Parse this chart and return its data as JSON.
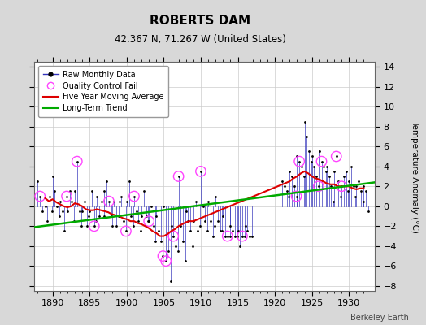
{
  "title": "ROBERTS DAM",
  "subtitle": "42.367 N, 71.267 W (United States)",
  "ylabel": "Temperature Anomaly (°C)",
  "credit": "Berkeley Earth",
  "xlim": [
    1887.5,
    1933.5
  ],
  "ylim": [
    -8.5,
    14.5
  ],
  "yticks": [
    -8,
    -6,
    -4,
    -2,
    0,
    2,
    4,
    6,
    8,
    10,
    12,
    14
  ],
  "xticks": [
    1890,
    1895,
    1900,
    1905,
    1910,
    1915,
    1920,
    1925,
    1930
  ],
  "outer_bg": "#d8d8d8",
  "plot_bg_color": "#ffffff",
  "raw_line_color": "#3333bb",
  "raw_dot_color": "#000000",
  "qc_fail_color": "#ff44ff",
  "moving_avg_color": "#dd0000",
  "trend_color": "#00aa00",
  "raw_data": [
    [
      1888.0,
      2.5
    ],
    [
      1888.3,
      1.0
    ],
    [
      1888.6,
      -0.5
    ],
    [
      1889.0,
      0.0
    ],
    [
      1889.3,
      -1.5
    ],
    [
      1889.6,
      1.0
    ],
    [
      1889.9,
      -0.5
    ],
    [
      1890.0,
      3.0
    ],
    [
      1890.3,
      1.5
    ],
    [
      1890.6,
      0.0
    ],
    [
      1890.9,
      -1.0
    ],
    [
      1891.0,
      0.5
    ],
    [
      1891.3,
      -0.5
    ],
    [
      1891.6,
      -2.5
    ],
    [
      1891.9,
      1.0
    ],
    [
      1892.0,
      -0.5
    ],
    [
      1892.3,
      1.5
    ],
    [
      1892.6,
      0.5
    ],
    [
      1892.9,
      -1.5
    ],
    [
      1893.0,
      1.5
    ],
    [
      1893.3,
      4.5
    ],
    [
      1893.6,
      -0.5
    ],
    [
      1893.9,
      -2.0
    ],
    [
      1894.0,
      -0.5
    ],
    [
      1894.3,
      0.5
    ],
    [
      1894.6,
      -2.0
    ],
    [
      1894.9,
      -1.0
    ],
    [
      1895.0,
      -0.5
    ],
    [
      1895.3,
      1.5
    ],
    [
      1895.6,
      -2.0
    ],
    [
      1895.9,
      -1.5
    ],
    [
      1896.0,
      1.0
    ],
    [
      1896.3,
      -1.0
    ],
    [
      1896.6,
      0.5
    ],
    [
      1896.9,
      1.5
    ],
    [
      1897.0,
      -1.0
    ],
    [
      1897.3,
      2.5
    ],
    [
      1897.6,
      0.5
    ],
    [
      1897.9,
      -1.0
    ],
    [
      1898.0,
      -2.0
    ],
    [
      1898.3,
      0.5
    ],
    [
      1898.6,
      -2.0
    ],
    [
      1898.9,
      -1.0
    ],
    [
      1899.0,
      0.5
    ],
    [
      1899.3,
      1.0
    ],
    [
      1899.6,
      -1.5
    ],
    [
      1899.9,
      -2.5
    ],
    [
      1900.0,
      0.5
    ],
    [
      1900.3,
      2.5
    ],
    [
      1900.6,
      -1.0
    ],
    [
      1900.9,
      -2.0
    ],
    [
      1901.0,
      1.0
    ],
    [
      1901.3,
      -0.5
    ],
    [
      1901.6,
      -1.5
    ],
    [
      1901.9,
      -2.5
    ],
    [
      1902.0,
      -1.0
    ],
    [
      1902.3,
      1.5
    ],
    [
      1902.6,
      -1.0
    ],
    [
      1902.9,
      -1.5
    ],
    [
      1903.0,
      -1.5
    ],
    [
      1903.3,
      0.0
    ],
    [
      1903.6,
      -2.0
    ],
    [
      1903.9,
      -3.5
    ],
    [
      1904.0,
      -1.0
    ],
    [
      1904.3,
      -2.5
    ],
    [
      1904.6,
      -3.5
    ],
    [
      1904.9,
      -5.0
    ],
    [
      1905.0,
      0.0
    ],
    [
      1905.3,
      -5.5
    ],
    [
      1905.6,
      -4.5
    ],
    [
      1905.9,
      -7.5
    ],
    [
      1906.0,
      -2.0
    ],
    [
      1906.3,
      -3.0
    ],
    [
      1906.6,
      -4.0
    ],
    [
      1906.9,
      -4.5
    ],
    [
      1907.0,
      3.0
    ],
    [
      1907.3,
      -2.0
    ],
    [
      1907.6,
      -3.5
    ],
    [
      1907.9,
      -5.5
    ],
    [
      1908.0,
      -0.5
    ],
    [
      1908.3,
      -1.5
    ],
    [
      1908.6,
      -2.5
    ],
    [
      1908.9,
      -4.0
    ],
    [
      1909.0,
      -1.5
    ],
    [
      1909.3,
      0.5
    ],
    [
      1909.6,
      -2.5
    ],
    [
      1909.9,
      -2.0
    ],
    [
      1910.0,
      3.5
    ],
    [
      1910.3,
      0.0
    ],
    [
      1910.6,
      -1.5
    ],
    [
      1910.9,
      -2.5
    ],
    [
      1911.0,
      0.5
    ],
    [
      1911.3,
      -1.5
    ],
    [
      1911.6,
      -3.0
    ],
    [
      1911.9,
      -2.0
    ],
    [
      1912.0,
      1.0
    ],
    [
      1912.3,
      -1.5
    ],
    [
      1912.6,
      -2.5
    ],
    [
      1912.9,
      -2.5
    ],
    [
      1913.0,
      -1.0
    ],
    [
      1913.3,
      -3.0
    ],
    [
      1913.6,
      -3.0
    ],
    [
      1913.9,
      -3.0
    ],
    [
      1914.0,
      -2.0
    ],
    [
      1914.3,
      -2.5
    ],
    [
      1914.6,
      -3.0
    ],
    [
      1914.9,
      -3.0
    ],
    [
      1915.0,
      -2.5
    ],
    [
      1915.3,
      -4.0
    ],
    [
      1915.6,
      -3.0
    ],
    [
      1915.9,
      -3.0
    ],
    [
      1916.0,
      -2.0
    ],
    [
      1916.3,
      -2.5
    ],
    [
      1916.6,
      -3.0
    ],
    [
      1916.9,
      -3.0
    ],
    [
      1921.0,
      2.5
    ],
    [
      1921.3,
      2.0
    ],
    [
      1921.6,
      1.5
    ],
    [
      1921.9,
      1.0
    ],
    [
      1922.0,
      3.5
    ],
    [
      1922.3,
      3.0
    ],
    [
      1922.6,
      2.0
    ],
    [
      1922.9,
      1.0
    ],
    [
      1923.0,
      5.0
    ],
    [
      1923.3,
      4.5
    ],
    [
      1923.6,
      4.0
    ],
    [
      1923.9,
      3.0
    ],
    [
      1924.0,
      8.5
    ],
    [
      1924.3,
      7.0
    ],
    [
      1924.6,
      5.5
    ],
    [
      1924.9,
      4.5
    ],
    [
      1925.0,
      5.0
    ],
    [
      1925.3,
      4.0
    ],
    [
      1925.6,
      3.0
    ],
    [
      1925.9,
      2.0
    ],
    [
      1926.0,
      5.5
    ],
    [
      1926.3,
      4.5
    ],
    [
      1926.6,
      4.0
    ],
    [
      1926.9,
      3.5
    ],
    [
      1927.0,
      4.0
    ],
    [
      1927.3,
      3.0
    ],
    [
      1927.6,
      2.0
    ],
    [
      1927.9,
      0.5
    ],
    [
      1928.0,
      3.5
    ],
    [
      1928.3,
      5.0
    ],
    [
      1928.6,
      2.5
    ],
    [
      1928.9,
      1.0
    ],
    [
      1929.0,
      2.0
    ],
    [
      1929.3,
      3.0
    ],
    [
      1929.6,
      3.5
    ],
    [
      1929.9,
      1.5
    ],
    [
      1930.0,
      2.5
    ],
    [
      1930.3,
      4.0
    ],
    [
      1930.6,
      2.0
    ],
    [
      1930.9,
      1.0
    ],
    [
      1931.0,
      2.0
    ],
    [
      1931.3,
      2.5
    ],
    [
      1931.6,
      1.5
    ],
    [
      1931.9,
      0.5
    ],
    [
      1932.0,
      2.0
    ],
    [
      1932.3,
      1.5
    ],
    [
      1932.6,
      -0.5
    ]
  ],
  "qc_fail_points": [
    [
      1888.3,
      1.0
    ],
    [
      1891.9,
      1.0
    ],
    [
      1893.3,
      4.5
    ],
    [
      1895.6,
      -2.0
    ],
    [
      1897.6,
      0.5
    ],
    [
      1899.9,
      -2.5
    ],
    [
      1901.0,
      1.0
    ],
    [
      1903.0,
      -1.5
    ],
    [
      1904.9,
      -5.0
    ],
    [
      1905.3,
      -5.5
    ],
    [
      1906.3,
      -3.0
    ],
    [
      1907.0,
      3.0
    ],
    [
      1910.0,
      3.5
    ],
    [
      1913.6,
      -3.0
    ],
    [
      1915.6,
      -3.0
    ],
    [
      1922.9,
      1.0
    ],
    [
      1923.3,
      4.5
    ],
    [
      1925.9,
      2.0
    ],
    [
      1926.3,
      4.5
    ],
    [
      1928.3,
      5.0
    ],
    [
      1929.0,
      2.0
    ]
  ],
  "moving_avg": [
    [
      1889.0,
      0.8
    ],
    [
      1889.5,
      0.5
    ],
    [
      1890.0,
      0.7
    ],
    [
      1890.5,
      0.4
    ],
    [
      1891.0,
      0.2
    ],
    [
      1891.5,
      0.0
    ],
    [
      1892.0,
      -0.1
    ],
    [
      1892.5,
      0.0
    ],
    [
      1893.0,
      0.3
    ],
    [
      1893.5,
      0.2
    ],
    [
      1894.0,
      0.0
    ],
    [
      1894.5,
      -0.3
    ],
    [
      1895.0,
      -0.4
    ],
    [
      1895.5,
      -0.4
    ],
    [
      1896.0,
      -0.3
    ],
    [
      1896.5,
      -0.4
    ],
    [
      1897.0,
      -0.5
    ],
    [
      1897.5,
      -0.6
    ],
    [
      1898.0,
      -0.8
    ],
    [
      1898.5,
      -0.9
    ],
    [
      1899.0,
      -1.0
    ],
    [
      1899.5,
      -1.2
    ],
    [
      1900.0,
      -1.3
    ],
    [
      1900.5,
      -1.5
    ],
    [
      1901.0,
      -1.5
    ],
    [
      1901.5,
      -1.7
    ],
    [
      1902.0,
      -1.8
    ],
    [
      1902.5,
      -2.0
    ],
    [
      1903.0,
      -2.2
    ],
    [
      1903.5,
      -2.5
    ],
    [
      1904.0,
      -2.7
    ],
    [
      1904.5,
      -3.0
    ],
    [
      1905.0,
      -3.0
    ],
    [
      1905.5,
      -2.8
    ],
    [
      1906.0,
      -2.5
    ],
    [
      1906.5,
      -2.3
    ],
    [
      1907.0,
      -2.0
    ],
    [
      1907.5,
      -1.8
    ],
    [
      1908.0,
      -1.6
    ],
    [
      1908.5,
      -1.5
    ],
    [
      1909.0,
      -1.5
    ],
    [
      1922.0,
      2.5
    ],
    [
      1922.5,
      2.8
    ],
    [
      1923.0,
      3.0
    ],
    [
      1923.5,
      3.3
    ],
    [
      1924.0,
      3.5
    ],
    [
      1924.5,
      3.3
    ],
    [
      1925.0,
      3.0
    ],
    [
      1925.5,
      2.8
    ],
    [
      1926.0,
      2.7
    ],
    [
      1926.5,
      2.5
    ],
    [
      1927.0,
      2.3
    ],
    [
      1927.5,
      2.2
    ],
    [
      1928.0,
      2.2
    ],
    [
      1928.5,
      2.0
    ],
    [
      1929.0,
      2.0
    ],
    [
      1929.5,
      2.0
    ],
    [
      1930.0,
      2.0
    ],
    [
      1930.5,
      1.8
    ],
    [
      1931.0,
      1.7
    ],
    [
      1931.5,
      1.8
    ],
    [
      1932.0,
      1.8
    ]
  ],
  "trend_line": [
    [
      1887.5,
      -2.1
    ],
    [
      1933.5,
      2.4
    ]
  ]
}
